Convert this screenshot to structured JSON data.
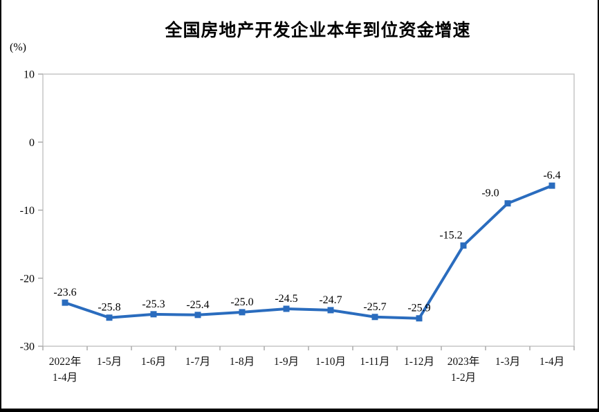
{
  "chart_data": {
    "type": "line",
    "title": "全国房地产开发企业本年到位资金增速",
    "unit_label": "(%)",
    "categories": [
      "2022年\n1-4月",
      "1-5月",
      "1-6月",
      "1-7月",
      "1-8月",
      "1-9月",
      "1-10月",
      "1-11月",
      "1-12月",
      "2023年\n1-2月",
      "1-3月",
      "1-4月"
    ],
    "values": [
      -23.6,
      -25.8,
      -25.3,
      -25.4,
      -25.0,
      -24.5,
      -24.7,
      -25.7,
      -25.9,
      -15.2,
      -9.0,
      -6.4
    ],
    "data_labels": [
      "-23.6",
      "-25.8",
      "-25.3",
      "-25.4",
      "-25.0",
      "-24.5",
      "-24.7",
      "-25.7",
      "-25.9",
      "-15.2",
      "-9.0",
      "-6.4"
    ],
    "label_dx": [
      0,
      0,
      0,
      0,
      0,
      0,
      0,
      0,
      0,
      -18,
      -25,
      0
    ],
    "y_ticks": [
      10,
      0,
      -10,
      -20,
      -30
    ],
    "ylim": [
      -30,
      10
    ],
    "grid": false,
    "legend": null,
    "colors": {
      "line": "#2A6CBE",
      "marker": "#2A6CBE",
      "plot_border": "#C6C6C6",
      "tick": "#ABABAB",
      "text": "#000000",
      "frame": "#000000"
    }
  }
}
